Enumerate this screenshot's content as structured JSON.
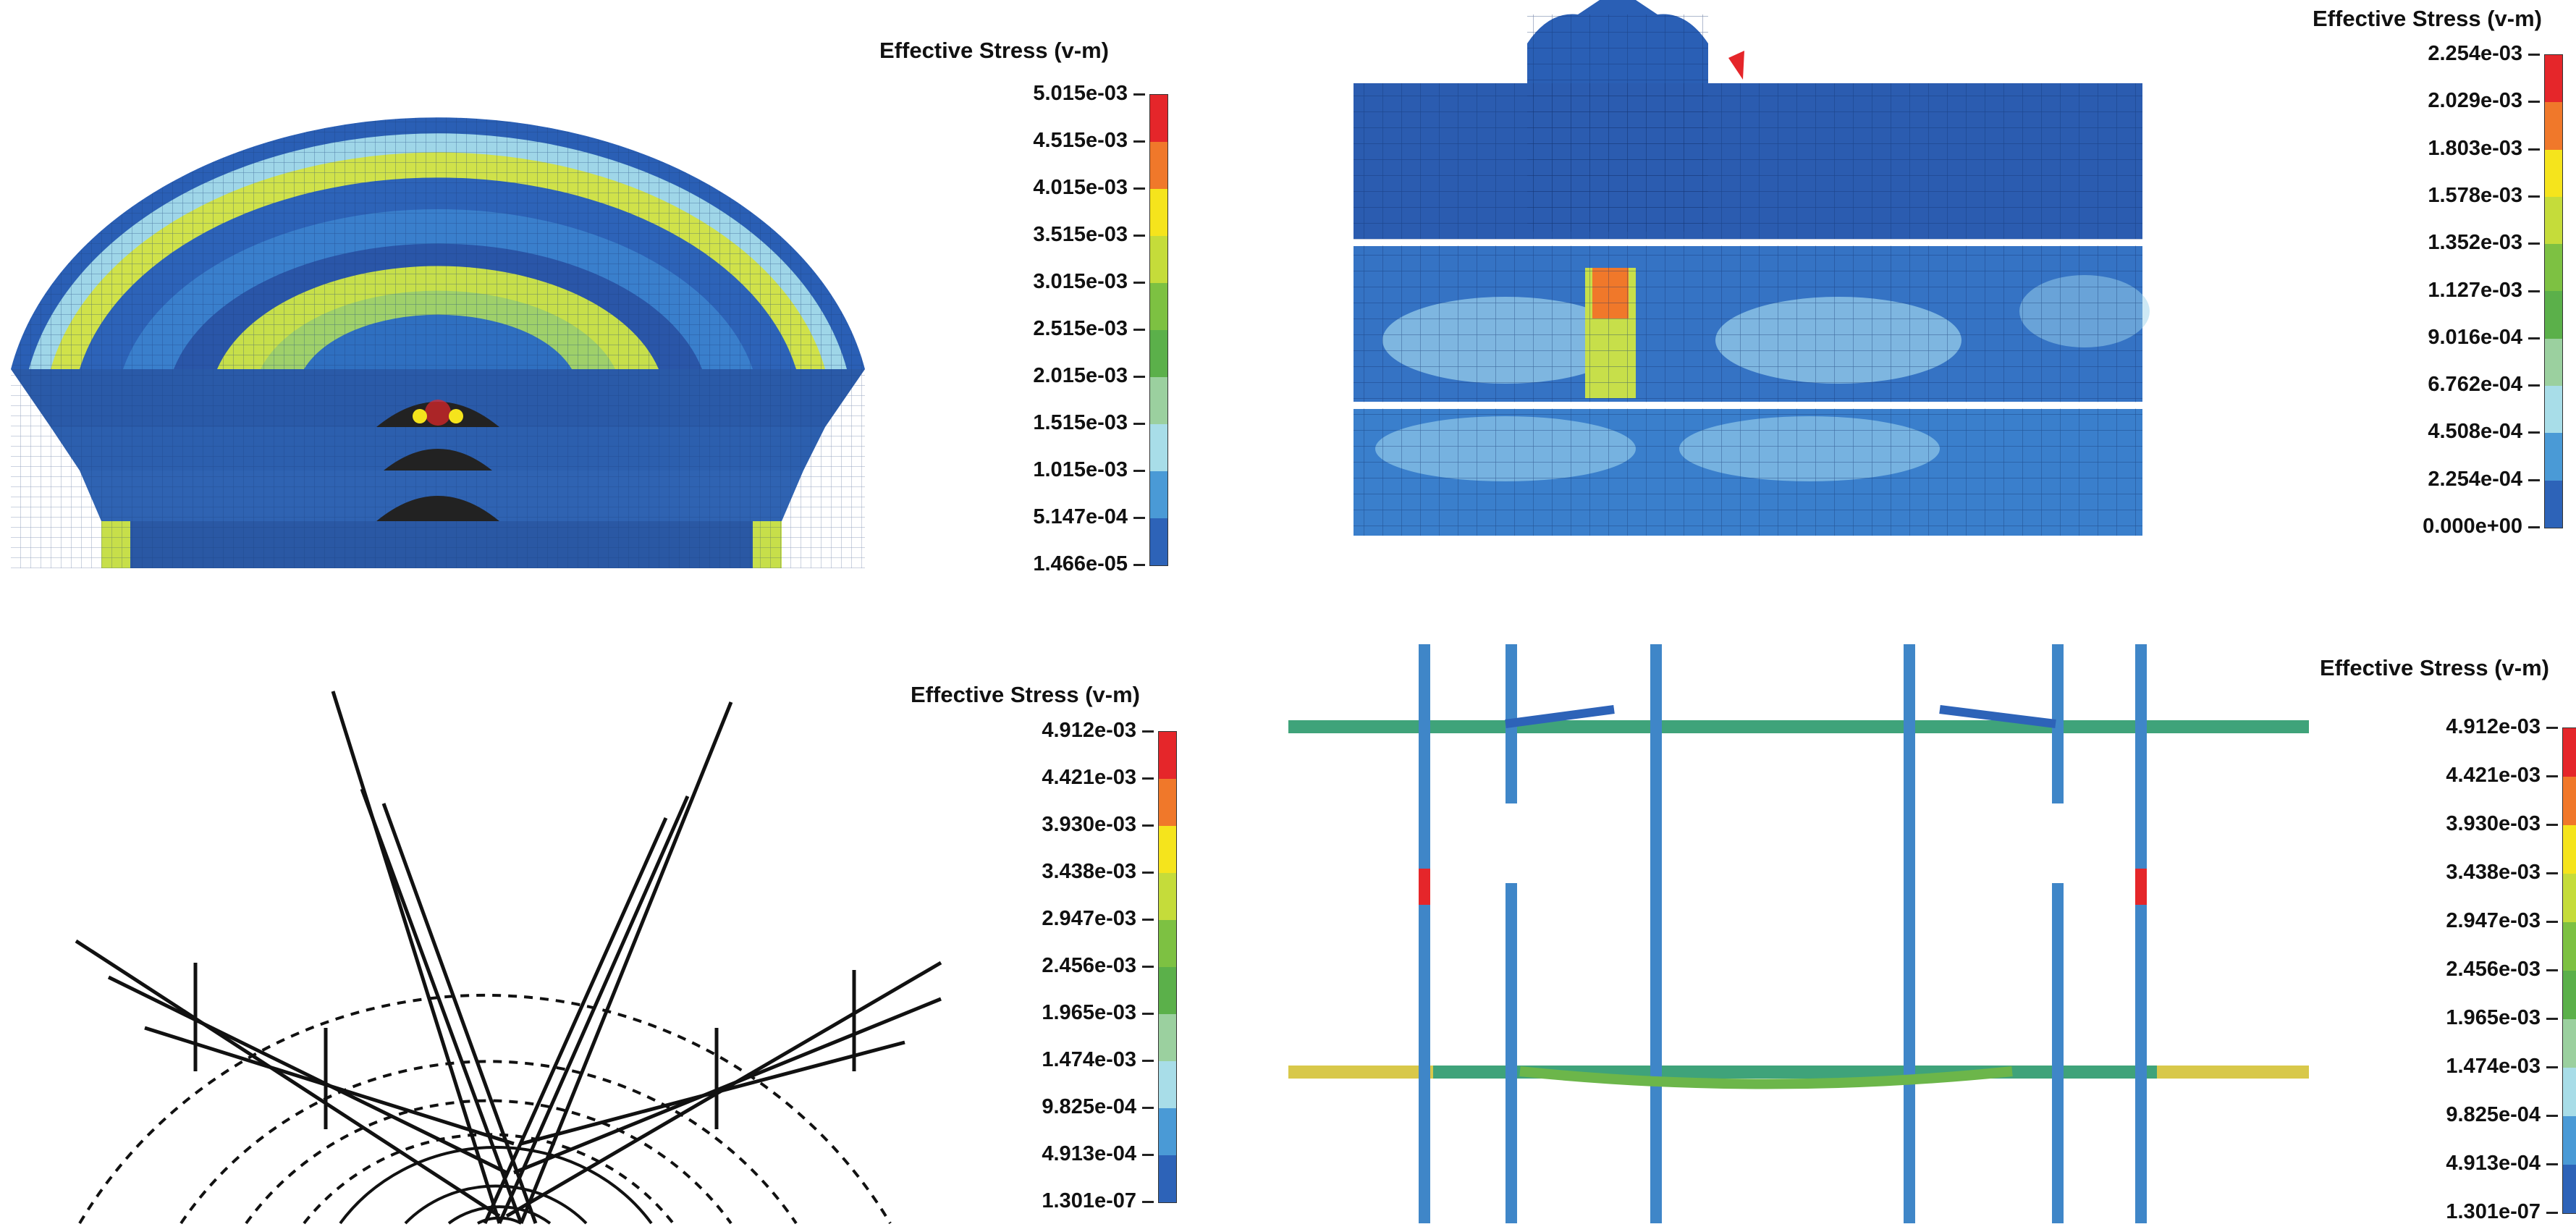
{
  "panels": [
    {
      "id": "top-left",
      "legend": {
        "title": "Effective Stress (v-m)",
        "ticks": [
          "5.015e-03",
          "4.515e-03",
          "4.015e-03",
          "3.515e-03",
          "3.015e-03",
          "2.515e-03",
          "2.015e-03",
          "1.515e-03",
          "1.015e-03",
          "5.147e-04",
          "1.466e-05"
        ]
      }
    },
    {
      "id": "top-right",
      "legend": {
        "title": "Effective Stress (v-m)",
        "ticks": [
          "2.254e-03",
          "2.029e-03",
          "1.803e-03",
          "1.578e-03",
          "1.352e-03",
          "1.127e-03",
          "9.016e-04",
          "6.762e-04",
          "4.508e-04",
          "2.254e-04",
          "0.000e+00"
        ]
      }
    },
    {
      "id": "bottom-left",
      "legend": {
        "title": "Effective Stress (v-m)",
        "ticks": [
          "4.912e-03",
          "4.421e-03",
          "3.930e-03",
          "3.438e-03",
          "2.947e-03",
          "2.456e-03",
          "1.965e-03",
          "1.474e-03",
          "9.825e-04",
          "4.913e-04",
          "1.301e-07"
        ]
      }
    },
    {
      "id": "bottom-right",
      "legend": {
        "title": "Effective Stress (v-m)",
        "ticks": [
          "4.912e-03",
          "4.421e-03",
          "3.930e-03",
          "3.438e-03",
          "2.947e-03",
          "2.456e-03",
          "1.965e-03",
          "1.474e-03",
          "9.825e-04",
          "4.913e-04",
          "1.301e-07"
        ]
      }
    }
  ],
  "colormap": [
    "#e5262a",
    "#f0782a",
    "#f5e41c",
    "#c5dc3a",
    "#7dc142",
    "#5bb04a",
    "#9bd09f",
    "#a8dde8",
    "#4a9ad6",
    "#2d63b8"
  ]
}
